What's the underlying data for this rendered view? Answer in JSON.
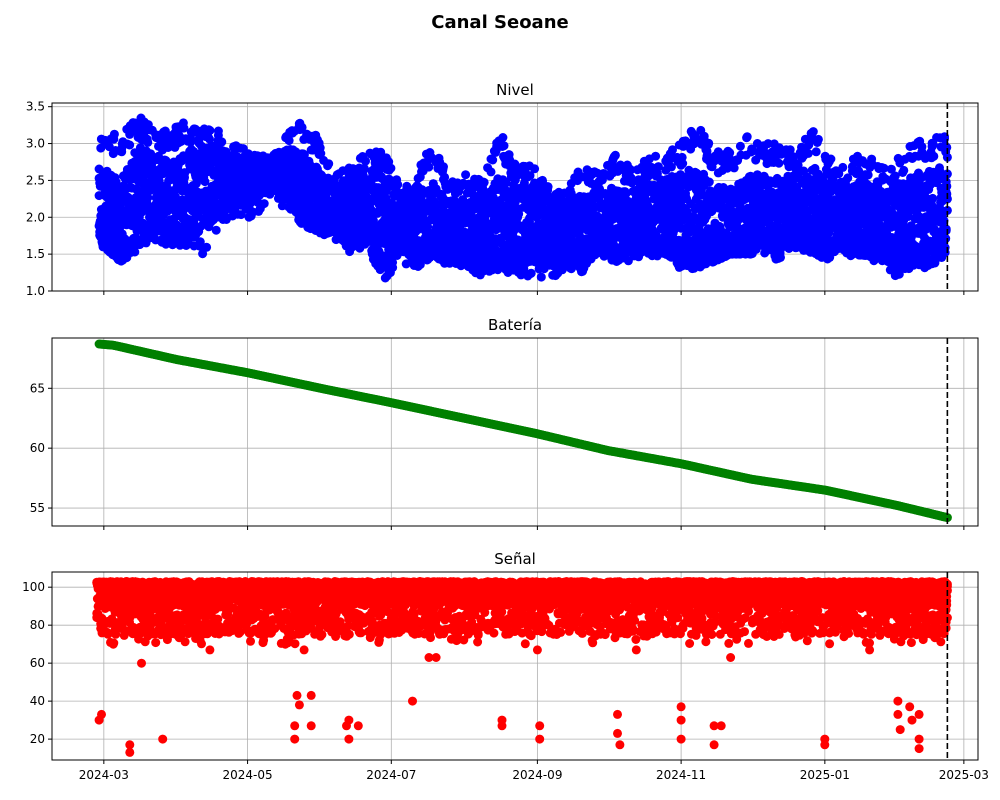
{
  "title": "Canal Seoane",
  "chart_data": [
    {
      "type": "scatter",
      "title": "Nivel",
      "color": "#0000ff",
      "ylim": [
        1.0,
        3.55
      ],
      "yticks": [
        1.0,
        1.5,
        2.0,
        2.5,
        3.0,
        3.5
      ],
      "ytick_labels": [
        "1.0",
        "1.5",
        "2.0",
        "2.5",
        "3.0",
        "3.5"
      ],
      "grid": true,
      "x_range": [
        "2024-02-28",
        "2025-02-22"
      ],
      "series": [
        {
          "x": [
            "2024-03-01",
            "2024-03-08",
            "2024-03-15",
            "2024-03-22",
            "2024-03-29",
            "2024-04-05",
            "2024-04-12",
            "2024-04-19",
            "2024-04-26",
            "2024-05-03",
            "2024-05-10",
            "2024-05-17",
            "2024-05-24",
            "2024-05-31",
            "2024-06-07",
            "2024-06-14",
            "2024-06-21",
            "2024-06-28",
            "2024-07-05",
            "2024-07-12",
            "2024-07-19",
            "2024-07-26",
            "2024-08-02",
            "2024-08-09",
            "2024-08-16",
            "2024-08-23",
            "2024-08-30",
            "2024-09-06",
            "2024-09-13",
            "2024-09-20",
            "2024-09-27",
            "2024-10-04",
            "2024-10-11",
            "2024-10-18",
            "2024-10-25",
            "2024-11-01",
            "2024-11-08",
            "2024-11-15",
            "2024-11-22",
            "2024-11-29",
            "2024-12-06",
            "2024-12-13",
            "2024-12-20",
            "2024-12-27",
            "2025-01-03",
            "2025-01-10",
            "2025-01-17",
            "2025-01-24",
            "2025-01-31",
            "2025-02-07",
            "2025-02-14",
            "2025-02-21"
          ],
          "min": [
            1.6,
            1.4,
            1.5,
            1.7,
            1.6,
            1.6,
            1.5,
            1.9,
            2.0,
            2.0,
            2.2,
            2.1,
            1.9,
            1.8,
            1.7,
            1.5,
            1.6,
            1.1,
            1.4,
            1.3,
            1.5,
            1.3,
            1.3,
            1.2,
            1.3,
            1.2,
            1.2,
            1.1,
            1.3,
            1.2,
            1.5,
            1.4,
            1.4,
            1.5,
            1.4,
            1.3,
            1.3,
            1.4,
            1.5,
            1.5,
            1.5,
            1.4,
            1.5,
            1.5,
            1.4,
            1.5,
            1.4,
            1.4,
            1.2,
            1.3,
            1.3,
            1.4
          ],
          "max": [
            3.2,
            3.1,
            3.4,
            3.2,
            3.2,
            3.3,
            3.2,
            3.2,
            3.0,
            2.9,
            2.8,
            3.1,
            3.3,
            3.1,
            2.6,
            2.7,
            2.9,
            2.9,
            2.4,
            2.6,
            3.1,
            2.5,
            2.6,
            2.5,
            3.2,
            2.7,
            2.7,
            2.4,
            2.4,
            2.7,
            2.6,
            2.9,
            2.7,
            2.8,
            2.9,
            3.0,
            3.3,
            2.9,
            2.9,
            3.1,
            3.0,
            3.0,
            2.9,
            3.2,
            2.8,
            2.7,
            2.9,
            2.7,
            2.8,
            3.0,
            3.1,
            3.1
          ],
          "median": [
            2.1,
            1.9,
            2.3,
            2.4,
            2.2,
            2.3,
            2.4,
            2.5,
            2.5,
            2.5,
            2.6,
            2.6,
            2.4,
            2.2,
            2.1,
            2.0,
            2.1,
            2.0,
            1.9,
            1.9,
            1.9,
            1.8,
            1.8,
            1.8,
            1.9,
            1.9,
            1.9,
            1.8,
            1.8,
            1.8,
            1.9,
            1.9,
            1.9,
            2.0,
            2.0,
            2.0,
            2.0,
            1.9,
            1.9,
            2.0,
            2.1,
            2.0,
            2.1,
            2.1,
            2.0,
            2.0,
            2.0,
            1.9,
            1.9,
            2.0,
            2.0,
            2.1
          ]
        }
      ]
    },
    {
      "type": "scatter",
      "title": "Batería",
      "color": "#008000",
      "ylim": [
        53.5,
        69.2
      ],
      "yticks": [
        55,
        60,
        65
      ],
      "ytick_labels": [
        "55",
        "60",
        "65"
      ],
      "grid": true,
      "series": [
        {
          "x": [
            "2024-02-28",
            "2024-03-05",
            "2024-04-01",
            "2024-05-01",
            "2024-06-01",
            "2024-07-01",
            "2024-08-01",
            "2024-09-01",
            "2024-10-01",
            "2024-11-01",
            "2024-12-01",
            "2025-01-01",
            "2025-02-01",
            "2025-02-22"
          ],
          "y": [
            68.7,
            68.6,
            67.4,
            66.3,
            65.0,
            63.8,
            62.5,
            61.2,
            59.8,
            58.7,
            57.4,
            56.5,
            55.2,
            54.2
          ]
        }
      ]
    },
    {
      "type": "scatter",
      "title": "Señal",
      "color": "#ff0000",
      "ylim": [
        9,
        108
      ],
      "yticks": [
        20,
        40,
        60,
        80,
        100
      ],
      "ytick_labels": [
        "20",
        "40",
        "60",
        "80",
        "100"
      ],
      "grid": true,
      "band": {
        "min": 75,
        "max": 103
      },
      "outliers": [
        {
          "x": "2024-02-28",
          "y": 30
        },
        {
          "x": "2024-02-29",
          "y": 33
        },
        {
          "x": "2024-03-12",
          "y": 13
        },
        {
          "x": "2024-03-12",
          "y": 17
        },
        {
          "x": "2024-03-17",
          "y": 60
        },
        {
          "x": "2024-03-26",
          "y": 20
        },
        {
          "x": "2024-05-21",
          "y": 20
        },
        {
          "x": "2024-05-21",
          "y": 27
        },
        {
          "x": "2024-05-22",
          "y": 43
        },
        {
          "x": "2024-05-23",
          "y": 38
        },
        {
          "x": "2024-05-25",
          "y": 67
        },
        {
          "x": "2024-05-28",
          "y": 43
        },
        {
          "x": "2024-05-28",
          "y": 27
        },
        {
          "x": "2024-06-12",
          "y": 27
        },
        {
          "x": "2024-06-13",
          "y": 30
        },
        {
          "x": "2024-06-13",
          "y": 20
        },
        {
          "x": "2024-06-17",
          "y": 27
        },
        {
          "x": "2024-07-10",
          "y": 40
        },
        {
          "x": "2024-07-17",
          "y": 63
        },
        {
          "x": "2024-08-17",
          "y": 30
        },
        {
          "x": "2024-08-17",
          "y": 27
        },
        {
          "x": "2024-09-02",
          "y": 27
        },
        {
          "x": "2024-09-02",
          "y": 20
        },
        {
          "x": "2024-10-05",
          "y": 33
        },
        {
          "x": "2024-10-05",
          "y": 23
        },
        {
          "x": "2024-10-06",
          "y": 17
        },
        {
          "x": "2024-11-01",
          "y": 37
        },
        {
          "x": "2024-11-01",
          "y": 30
        },
        {
          "x": "2024-11-01",
          "y": 20
        },
        {
          "x": "2024-11-15",
          "y": 27
        },
        {
          "x": "2024-11-15",
          "y": 17
        },
        {
          "x": "2024-11-18",
          "y": 27
        },
        {
          "x": "2025-01-01",
          "y": 20
        },
        {
          "x": "2025-01-01",
          "y": 17
        },
        {
          "x": "2025-02-01",
          "y": 40
        },
        {
          "x": "2025-02-01",
          "y": 33
        },
        {
          "x": "2025-02-02",
          "y": 25
        },
        {
          "x": "2025-02-06",
          "y": 37
        },
        {
          "x": "2025-02-07",
          "y": 30
        },
        {
          "x": "2025-02-10",
          "y": 33
        },
        {
          "x": "2025-02-10",
          "y": 20
        },
        {
          "x": "2025-02-10",
          "y": 15
        }
      ],
      "mid_dips": [
        {
          "x": "2024-03-05",
          "y": 70
        },
        {
          "x": "2024-04-15",
          "y": 67
        },
        {
          "x": "2024-05-17",
          "y": 70
        },
        {
          "x": "2024-07-20",
          "y": 63
        },
        {
          "x": "2024-09-01",
          "y": 67
        },
        {
          "x": "2024-10-13",
          "y": 67
        },
        {
          "x": "2024-11-22",
          "y": 63
        },
        {
          "x": "2025-01-20",
          "y": 67
        }
      ]
    }
  ],
  "xaxis": {
    "ticks": [
      "2024-03-01",
      "2024-05-01",
      "2024-07-01",
      "2024-09-01",
      "2024-11-01",
      "2025-01-01",
      "2025-03-01"
    ],
    "tick_labels": [
      "2024-03",
      "2024-05",
      "2024-07",
      "2024-09",
      "2024-11",
      "2025-01",
      "2025-03"
    ],
    "vline": "2025-02-22"
  }
}
